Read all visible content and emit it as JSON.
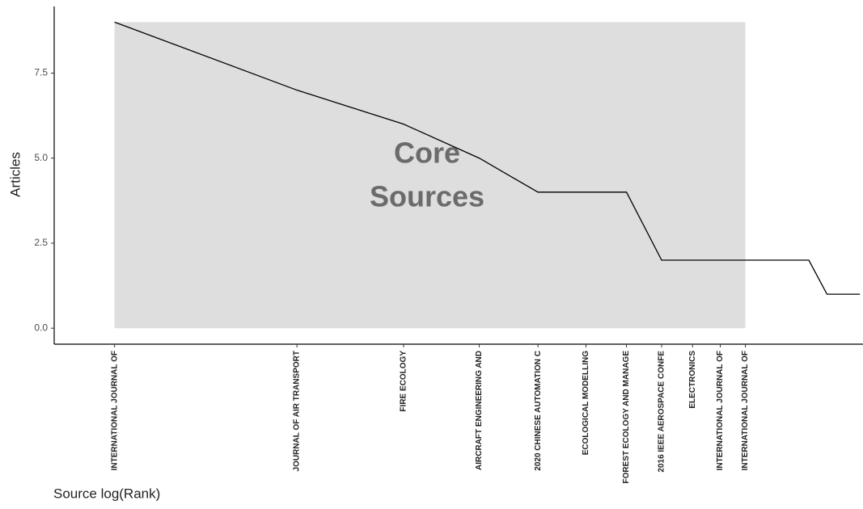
{
  "chart_data": {
    "type": "line",
    "y_label": "Articles",
    "x_label": "Source log(Rank)",
    "annotation": [
      "Core",
      "Sources"
    ],
    "x": [
      1,
      2,
      3,
      4,
      5,
      6,
      7,
      8,
      9,
      10,
      11,
      12,
      13,
      14,
      15,
      16,
      17
    ],
    "categories": [
      "INTERNATIONAL JOURNAL OF",
      "JOURNAL OF AIR TRANSPORT",
      "FIRE ECOLOGY",
      "AIRCRAFT ENGINEERING AND",
      "2020 CHINESE AUTOMATION C",
      "ECOLOGICAL MODELLING",
      "FOREST ECOLOGY AND MANAGE",
      "2016 IEEE AEROSPACE CONFE",
      "ELECTRONICS",
      "INTERNATIONAL JOURNAL OF",
      "INTERNATIONAL JOURNAL OF",
      null,
      null,
      null,
      null,
      null,
      null
    ],
    "values": [
      9,
      7,
      6,
      5,
      4,
      4,
      4,
      2,
      2,
      2,
      2,
      2,
      2,
      2,
      1,
      1,
      1
    ],
    "color": "#000000",
    "core_ranks": [
      1,
      11
    ],
    "core_color": "#dedede",
    "x_scale": "log",
    "xlim": [
      0.795,
      17.2
    ],
    "ylim": [
      -0.47,
      9.65
    ],
    "yticks": [
      {
        "value": 0,
        "label": "0.0"
      },
      {
        "value": 2.5,
        "label": "2.5"
      },
      {
        "value": 5,
        "label": "5.0"
      },
      {
        "value": 7.5,
        "label": "7.5"
      }
    ],
    "grid": false
  }
}
